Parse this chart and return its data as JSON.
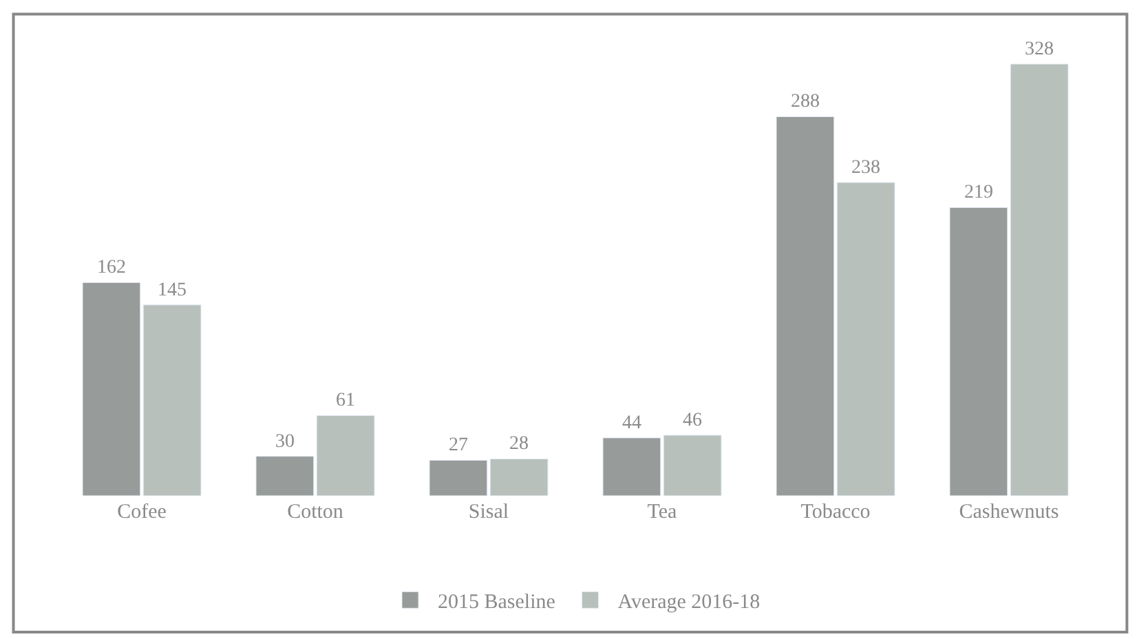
{
  "chart_data": {
    "type": "bar",
    "categories": [
      "Cofee",
      "Cotton",
      "Sisal",
      "Tea",
      "Tobacco",
      "Cashewnuts"
    ],
    "series": [
      {
        "name": "2015 Baseline",
        "color": "#979b99",
        "values": [
          162,
          30,
          27,
          44,
          288,
          219
        ]
      },
      {
        "name": "Average 2016-18",
        "color": "#b8c0bc",
        "values": [
          145,
          61,
          28,
          46,
          238,
          328
        ]
      }
    ],
    "data_labels": true,
    "tick_labels": "x",
    "legend": "bottom"
  }
}
